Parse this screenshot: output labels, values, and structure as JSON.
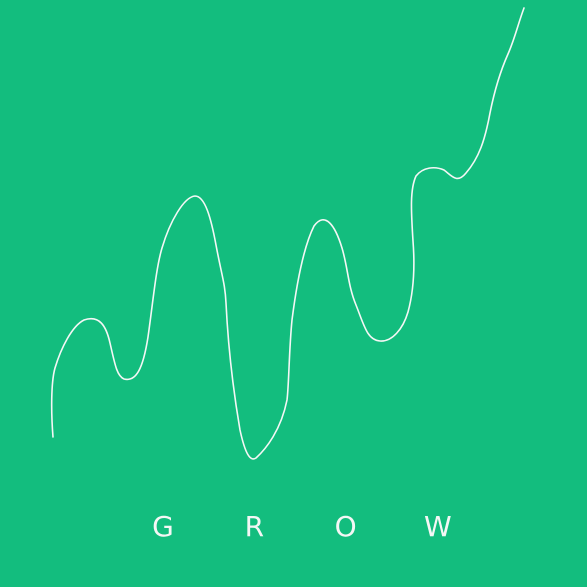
{
  "colors": {
    "background": "#13BD7E",
    "line": "#F4F7F5",
    "text": "#F4F7F5"
  },
  "brand": {
    "letters": [
      "G",
      "R",
      "O",
      "W"
    ]
  },
  "graphic": {
    "icon": "growth-line-icon"
  }
}
